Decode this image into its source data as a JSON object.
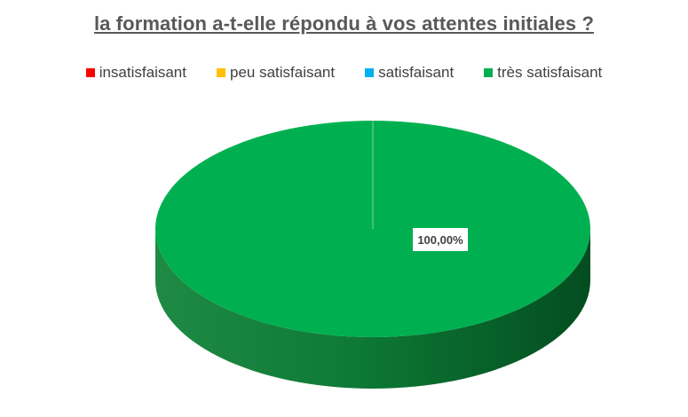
{
  "chart_data": {
    "type": "pie",
    "style": "3d",
    "title": "la formation a-t-elle répondu à vos attentes initiales ?",
    "legend_position": "top",
    "categories": [
      "insatisfaisant",
      "peu satisfaisant",
      "satisfaisant",
      "très satisfaisant"
    ],
    "colors": [
      "#FF0000",
      "#FFC000",
      "#00B0F0",
      "#00B050"
    ],
    "values": [
      0,
      0,
      0,
      100
    ],
    "data_labels": [
      "",
      "",
      "",
      "100,00%"
    ]
  }
}
